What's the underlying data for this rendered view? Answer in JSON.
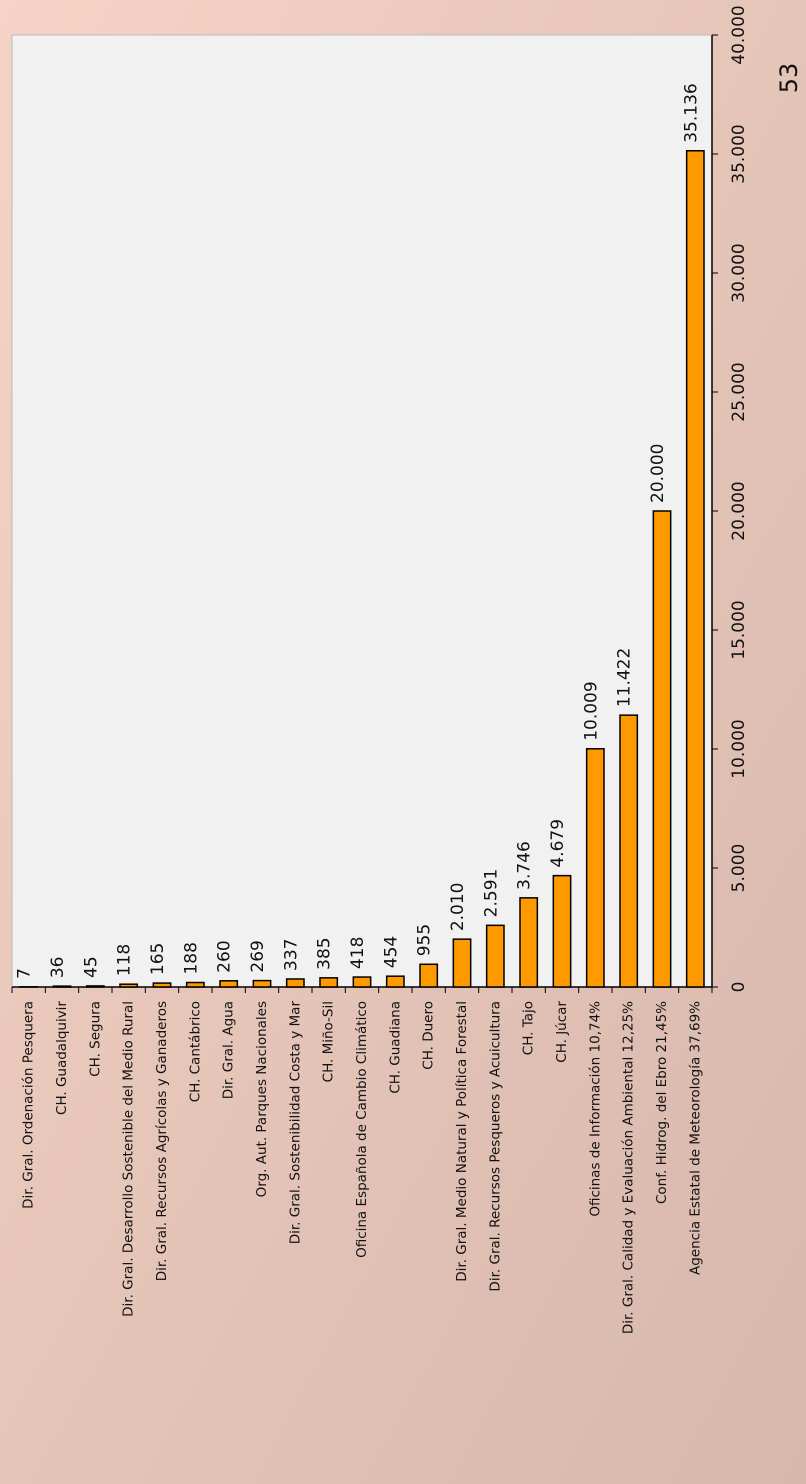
{
  "page_number": "53",
  "chart_data": {
    "type": "bar",
    "horizontal": true,
    "categories": [
      "Dir. Gral. Ordenación Pesquera",
      "CH. Guadalquivir",
      "CH. Segura",
      "Dir. Gral. Desarrollo Sostenible del Medio Rural",
      "Dir. Gral. Recursos Agrícolas y Ganaderos",
      "CH. Cantábrico",
      "Dir. Gral. Agua",
      "Org. Aut. Parques Nacionales",
      "Dir. Gral. Sostenibilidad Costa y Mar",
      "CH. Miño-Sil",
      "Oficina Española de Cambio Climático",
      "CH. Guadiana",
      "CH. Duero",
      "Dir. Gral. Medio Natural y Política Forestal",
      "Dir. Gral. Recursos Pesqueros y Acuicultura",
      "CH. Tajo",
      "CH. Júcar",
      "Oficinas de Información 10,74%",
      "Dir. Gral. Calidad y Evaluación Ambiental 12,25%",
      "Conf. Hidrog. del Ebro 21,45%",
      "Agencia Estatal de Meteorología 37,69%"
    ],
    "values": [
      7,
      36,
      45,
      118,
      165,
      188,
      260,
      269,
      337,
      385,
      418,
      454,
      955,
      2010,
      2591,
      3746,
      4679,
      10009,
      11422,
      20000,
      35136
    ],
    "value_labels": [
      "7",
      "36",
      "45",
      "118",
      "165",
      "188",
      "260",
      "269",
      "337",
      "385",
      "418",
      "454",
      "955",
      "2.010",
      "2.591",
      "3.746",
      "4.679",
      "10.009",
      "11.422",
      "20.000",
      "35.136"
    ],
    "color": "#ff9900",
    "ylim": [
      0,
      40000
    ],
    "yticks": [
      0,
      {
        "value": 5000,
        "label": "5.000"
      },
      {
        "value": 10000,
        "label": "10.000"
      },
      {
        "value": 15000,
        "label": "15.000"
      },
      {
        "value": 20000,
        "label": "20.000"
      },
      {
        "value": 25000,
        "label": "25.000"
      },
      {
        "value": 30000,
        "label": "30.000"
      },
      {
        "value": 35000,
        "label": "35.000"
      },
      {
        "value": 40000,
        "label": "40.000"
      }
    ],
    "grid": false
  }
}
